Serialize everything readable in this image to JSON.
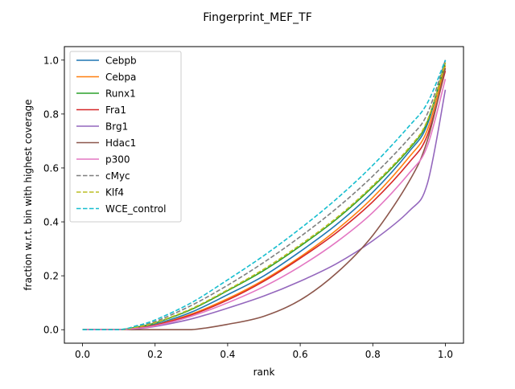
{
  "chart_data": {
    "type": "line",
    "title": "Fingerprint_MEF_TF",
    "xlabel": "rank",
    "ylabel": "fraction w.r.t. bin with highest coverage",
    "xlim": [
      -0.05,
      1.05
    ],
    "ylim": [
      -0.05,
      1.05
    ],
    "xticks": [
      0.0,
      0.2,
      0.4,
      0.6,
      0.8,
      1.0
    ],
    "yticks": [
      0.0,
      0.2,
      0.4,
      0.6,
      0.8,
      1.0
    ],
    "xtick_labels": [
      "0.0",
      "0.2",
      "0.4",
      "0.6",
      "0.8",
      "1.0"
    ],
    "ytick_labels": [
      "0.0",
      "0.2",
      "0.4",
      "0.6",
      "0.8",
      "1.0"
    ],
    "grid": false,
    "legend_position": "top-left",
    "x": [
      0.0,
      0.1,
      0.15,
      0.2,
      0.3,
      0.4,
      0.5,
      0.6,
      0.7,
      0.8,
      0.9,
      0.95,
      1.0
    ],
    "series": [
      {
        "name": "Cebpb",
        "color": "#1f77b4",
        "dash": "solid",
        "values": [
          0.0,
          0.0,
          0.008,
          0.02,
          0.065,
          0.13,
          0.2,
          0.29,
          0.39,
          0.51,
          0.66,
          0.76,
          1.0
        ]
      },
      {
        "name": "Cebpa",
        "color": "#ff7f0e",
        "dash": "solid",
        "values": [
          0.0,
          0.0,
          0.006,
          0.017,
          0.058,
          0.115,
          0.185,
          0.27,
          0.37,
          0.49,
          0.64,
          0.74,
          0.98
        ]
      },
      {
        "name": "Runx1",
        "color": "#2ca02c",
        "dash": "solid",
        "values": [
          0.0,
          0.0,
          0.01,
          0.025,
          0.075,
          0.145,
          0.22,
          0.31,
          0.41,
          0.53,
          0.67,
          0.77,
          0.99
        ]
      },
      {
        "name": "Fra1",
        "color": "#d62728",
        "dash": "solid",
        "values": [
          0.0,
          0.0,
          0.006,
          0.016,
          0.055,
          0.11,
          0.18,
          0.265,
          0.36,
          0.475,
          0.62,
          0.72,
          0.96
        ]
      },
      {
        "name": "Brg1",
        "color": "#9467bd",
        "dash": "solid",
        "values": [
          0.0,
          0.0,
          0.004,
          0.012,
          0.04,
          0.08,
          0.125,
          0.18,
          0.245,
          0.33,
          0.44,
          0.54,
          0.89
        ]
      },
      {
        "name": "Hdac1",
        "color": "#8c564b",
        "dash": "solid",
        "values": [
          0.0,
          0.0,
          0.0,
          0.0,
          0.0,
          0.02,
          0.05,
          0.11,
          0.21,
          0.35,
          0.55,
          0.7,
          0.97
        ]
      },
      {
        "name": "p300",
        "color": "#e377c2",
        "dash": "solid",
        "values": [
          0.0,
          0.0,
          0.005,
          0.014,
          0.05,
          0.1,
          0.16,
          0.235,
          0.325,
          0.435,
          0.58,
          0.68,
          0.93
        ]
      },
      {
        "name": "cMyc",
        "color": "#7f7f7f",
        "dash": "dashed",
        "values": [
          0.0,
          0.0,
          0.012,
          0.03,
          0.09,
          0.165,
          0.25,
          0.345,
          0.45,
          0.57,
          0.71,
          0.8,
          1.0
        ]
      },
      {
        "name": "Klf4",
        "color": "#bcbd22",
        "dash": "dashed",
        "values": [
          0.0,
          0.0,
          0.01,
          0.026,
          0.078,
          0.148,
          0.225,
          0.315,
          0.415,
          0.535,
          0.675,
          0.775,
          0.99
        ]
      },
      {
        "name": "WCE_control",
        "color": "#17becf",
        "dash": "dashed",
        "values": [
          0.0,
          0.0,
          0.015,
          0.036,
          0.1,
          0.185,
          0.275,
          0.375,
          0.485,
          0.61,
          0.755,
          0.84,
          1.0
        ]
      }
    ]
  }
}
